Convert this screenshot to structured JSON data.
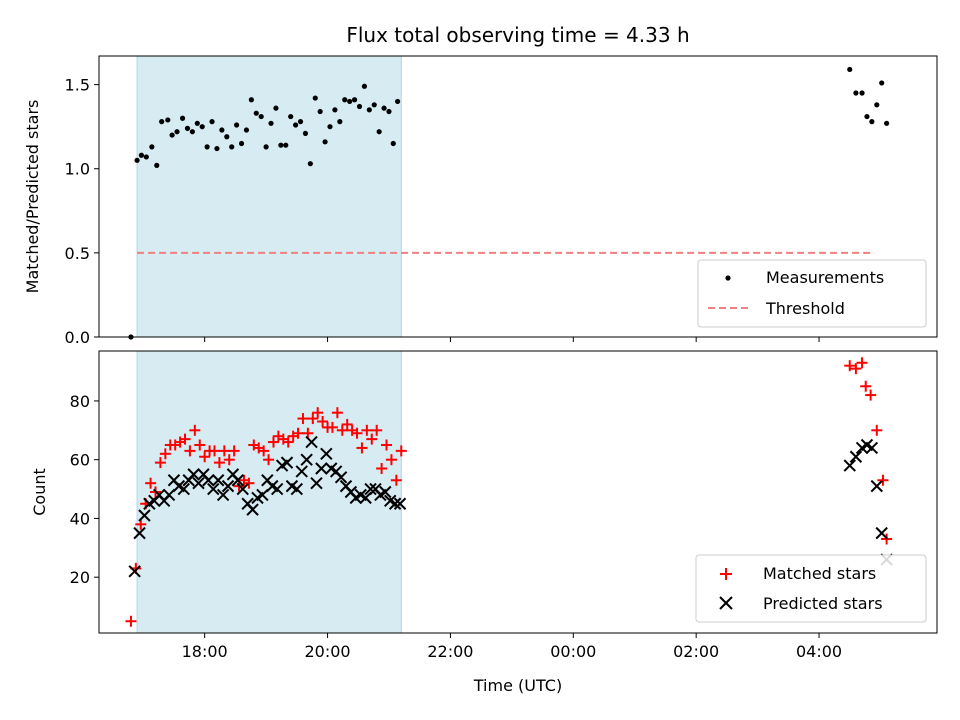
{
  "chart_data": {
    "type": "scatter",
    "title": "Flux total observing time = 4.33 h",
    "xlabel": "Time (UTC)",
    "x_units": "hours since 16:00 UTC",
    "xlim": [
      0.28,
      13.92
    ],
    "x_ticks": [
      {
        "value": 2,
        "label": "18:00"
      },
      {
        "value": 4,
        "label": "20:00"
      },
      {
        "value": 6,
        "label": "22:00"
      },
      {
        "value": 8,
        "label": "00:00"
      },
      {
        "value": 10,
        "label": "02:00"
      },
      {
        "value": 12,
        "label": "04:00"
      }
    ],
    "shaded_region": {
      "x_start": 0.9,
      "x_end": 5.2,
      "color": "#add8e6"
    },
    "panels": [
      {
        "name": "ratio",
        "ylabel": "Matched/Predicted stars",
        "ylim": [
          0,
          1.67
        ],
        "y_ticks": [
          {
            "value": 0,
            "label": "0.0"
          },
          {
            "value": 0.5,
            "label": "0.5"
          },
          {
            "value": 1,
            "label": "1.0"
          },
          {
            "value": 1.5,
            "label": "1.5"
          }
        ],
        "legend": {
          "position": "lower-right",
          "items": [
            {
              "label": "Measurements",
              "marker": "dot",
              "color": "#000000"
            },
            {
              "label": "Threshold",
              "marker": "dashed-line",
              "color": "#f08080"
            }
          ]
        },
        "threshold": {
          "y": 0.5,
          "x_range": [
            0.9,
            12.9
          ],
          "color": "#f08080"
        },
        "series": [
          {
            "name": "Measurements",
            "marker": "dot",
            "color": "#000000",
            "points": [
              [
                0.8,
                0.0
              ],
              [
                0.9,
                1.05
              ],
              [
                0.97,
                1.08
              ],
              [
                1.05,
                1.07
              ],
              [
                1.14,
                1.13
              ],
              [
                1.22,
                1.02
              ],
              [
                1.3,
                1.28
              ],
              [
                1.4,
                1.29
              ],
              [
                1.47,
                1.2
              ],
              [
                1.55,
                1.22
              ],
              [
                1.64,
                1.3
              ],
              [
                1.72,
                1.24
              ],
              [
                1.8,
                1.22
              ],
              [
                1.88,
                1.27
              ],
              [
                1.96,
                1.25
              ],
              [
                2.04,
                1.13
              ],
              [
                2.12,
                1.28
              ],
              [
                2.2,
                1.12
              ],
              [
                2.28,
                1.23
              ],
              [
                2.36,
                1.19
              ],
              [
                2.44,
                1.13
              ],
              [
                2.52,
                1.26
              ],
              [
                2.6,
                1.15
              ],
              [
                2.68,
                1.23
              ],
              [
                2.76,
                1.41
              ],
              [
                2.84,
                1.33
              ],
              [
                2.92,
                1.31
              ],
              [
                3.0,
                1.13
              ],
              [
                3.08,
                1.27
              ],
              [
                3.16,
                1.36
              ],
              [
                3.24,
                1.14
              ],
              [
                3.32,
                1.14
              ],
              [
                3.4,
                1.31
              ],
              [
                3.48,
                1.26
              ],
              [
                3.56,
                1.28
              ],
              [
                3.64,
                1.21
              ],
              [
                3.72,
                1.03
              ],
              [
                3.8,
                1.42
              ],
              [
                3.88,
                1.34
              ],
              [
                3.96,
                1.16
              ],
              [
                4.04,
                1.25
              ],
              [
                4.12,
                1.35
              ],
              [
                4.2,
                1.28
              ],
              [
                4.28,
                1.41
              ],
              [
                4.36,
                1.4
              ],
              [
                4.44,
                1.41
              ],
              [
                4.52,
                1.37
              ],
              [
                4.6,
                1.49
              ],
              [
                4.68,
                1.35
              ],
              [
                4.76,
                1.38
              ],
              [
                4.84,
                1.22
              ],
              [
                4.92,
                1.36
              ],
              [
                5.0,
                1.34
              ],
              [
                5.07,
                1.15
              ],
              [
                5.14,
                1.4
              ],
              [
                12.5,
                1.59
              ],
              [
                12.6,
                1.45
              ],
              [
                12.7,
                1.45
              ],
              [
                12.78,
                1.31
              ],
              [
                12.86,
                1.28
              ],
              [
                12.94,
                1.38
              ],
              [
                13.02,
                1.51
              ],
              [
                13.1,
                1.27
              ]
            ]
          }
        ]
      },
      {
        "name": "counts",
        "ylabel": "Count",
        "ylim": [
          1,
          97
        ],
        "y_ticks": [
          {
            "value": 20,
            "label": "20"
          },
          {
            "value": 40,
            "label": "40"
          },
          {
            "value": 60,
            "label": "60"
          },
          {
            "value": 80,
            "label": "80"
          }
        ],
        "legend": {
          "position": "lower-right",
          "items": [
            {
              "label": "Matched stars",
              "marker": "plus",
              "color": "#ff0000"
            },
            {
              "label": "Predicted stars",
              "marker": "x",
              "color": "#000000"
            }
          ]
        },
        "series": [
          {
            "name": "Matched stars",
            "marker": "plus",
            "color": "#ff0000",
            "points": [
              [
                0.8,
                5
              ],
              [
                0.88,
                23
              ],
              [
                0.96,
                38
              ],
              [
                1.04,
                45
              ],
              [
                1.12,
                52
              ],
              [
                1.2,
                49
              ],
              [
                1.28,
                59
              ],
              [
                1.36,
                62
              ],
              [
                1.44,
                65
              ],
              [
                1.52,
                65
              ],
              [
                1.6,
                66
              ],
              [
                1.68,
                67
              ],
              [
                1.76,
                63
              ],
              [
                1.84,
                70
              ],
              [
                1.92,
                65
              ],
              [
                2.0,
                61
              ],
              [
                2.08,
                63
              ],
              [
                2.16,
                63
              ],
              [
                2.24,
                59
              ],
              [
                2.32,
                63
              ],
              [
                2.4,
                60
              ],
              [
                2.48,
                63
              ],
              [
                2.56,
                51
              ],
              [
                2.64,
                53
              ],
              [
                2.72,
                52
              ],
              [
                2.8,
                65
              ],
              [
                2.88,
                64
              ],
              [
                2.96,
                63
              ],
              [
                3.04,
                60
              ],
              [
                3.12,
                66
              ],
              [
                3.2,
                68
              ],
              [
                3.28,
                67
              ],
              [
                3.36,
                66
              ],
              [
                3.44,
                68
              ],
              [
                3.52,
                69
              ],
              [
                3.6,
                74
              ],
              [
                3.68,
                69
              ],
              [
                3.76,
                74
              ],
              [
                3.84,
                76
              ],
              [
                3.92,
                73
              ],
              [
                4.0,
                71
              ],
              [
                4.08,
                71
              ],
              [
                4.16,
                76
              ],
              [
                4.24,
                70
              ],
              [
                4.32,
                72
              ],
              [
                4.4,
                70
              ],
              [
                4.48,
                69
              ],
              [
                4.56,
                64
              ],
              [
                4.64,
                70
              ],
              [
                4.72,
                67
              ],
              [
                4.8,
                70
              ],
              [
                4.88,
                57
              ],
              [
                4.96,
                65
              ],
              [
                5.04,
                60
              ],
              [
                5.12,
                53
              ],
              [
                5.2,
                63
              ],
              [
                12.5,
                92
              ],
              [
                12.6,
                91
              ],
              [
                12.7,
                93
              ],
              [
                12.76,
                85
              ],
              [
                12.84,
                82
              ],
              [
                12.94,
                70
              ],
              [
                13.04,
                53
              ],
              [
                13.1,
                33
              ]
            ]
          },
          {
            "name": "Predicted stars",
            "marker": "x",
            "color": "#000000",
            "points": [
              [
                0.86,
                22
              ],
              [
                0.94,
                35
              ],
              [
                1.02,
                41
              ],
              [
                1.1,
                45
              ],
              [
                1.18,
                46
              ],
              [
                1.26,
                48
              ],
              [
                1.34,
                46
              ],
              [
                1.42,
                48
              ],
              [
                1.5,
                53
              ],
              [
                1.58,
                51
              ],
              [
                1.66,
                50
              ],
              [
                1.74,
                53
              ],
              [
                1.82,
                55
              ],
              [
                1.9,
                52
              ],
              [
                1.98,
                55
              ],
              [
                2.06,
                53
              ],
              [
                2.14,
                50
              ],
              [
                2.22,
                53
              ],
              [
                2.3,
                48
              ],
              [
                2.38,
                51
              ],
              [
                2.46,
                55
              ],
              [
                2.54,
                53
              ],
              [
                2.62,
                50
              ],
              [
                2.7,
                45
              ],
              [
                2.78,
                43
              ],
              [
                2.86,
                47
              ],
              [
                2.94,
                48
              ],
              [
                3.02,
                53
              ],
              [
                3.1,
                51
              ],
              [
                3.18,
                50
              ],
              [
                3.26,
                58
              ],
              [
                3.34,
                59
              ],
              [
                3.42,
                51
              ],
              [
                3.5,
                50
              ],
              [
                3.58,
                56
              ],
              [
                3.66,
                60
              ],
              [
                3.74,
                66
              ],
              [
                3.82,
                52
              ],
              [
                3.9,
                57
              ],
              [
                3.98,
                62
              ],
              [
                4.06,
                57
              ],
              [
                4.14,
                56
              ],
              [
                4.22,
                54
              ],
              [
                4.3,
                51
              ],
              [
                4.38,
                49
              ],
              [
                4.46,
                47
              ],
              [
                4.54,
                48
              ],
              [
                4.62,
                47
              ],
              [
                4.7,
                50
              ],
              [
                4.78,
                50
              ],
              [
                4.86,
                48
              ],
              [
                4.94,
                49
              ],
              [
                5.02,
                46
              ],
              [
                5.1,
                45
              ],
              [
                5.18,
                45
              ],
              [
                12.5,
                58
              ],
              [
                12.6,
                61
              ],
              [
                12.7,
                64
              ],
              [
                12.78,
                65
              ],
              [
                12.86,
                64
              ],
              [
                12.94,
                51
              ],
              [
                13.02,
                35
              ],
              [
                13.1,
                26
              ]
            ]
          }
        ]
      }
    ]
  }
}
